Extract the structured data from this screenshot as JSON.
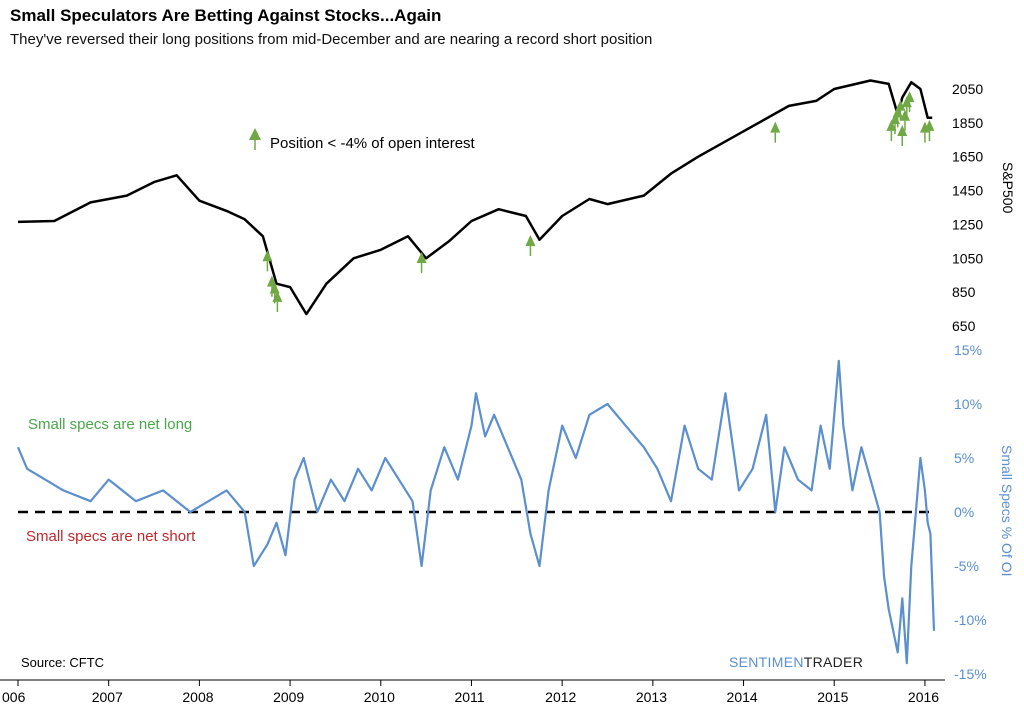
{
  "title": "Small Speculators Are Betting Against Stocks...Again",
  "subtitle": "They've reversed their long positions from mid-December and are nearing a record short position",
  "chart_data": [
    {
      "type": "line",
      "panel": "top",
      "ylabel": "S&P500",
      "y_ticks": [
        "2050",
        "1850",
        "1650",
        "1450",
        "1250",
        "1050",
        "850",
        "650"
      ],
      "ylim": [
        650,
        2150
      ],
      "x_ticks": [
        "006",
        "2007",
        "2008",
        "2009",
        "2010",
        "2011",
        "2012",
        "2013",
        "2014",
        "2015",
        "2016"
      ],
      "legend": "Position < -4% of open interest",
      "colors": {
        "line": "#000000",
        "marker": "#70a845"
      },
      "series": [
        {
          "x": [
            2006.0,
            2006.4,
            2006.8,
            2007.2,
            2007.5,
            2007.75,
            2008.0,
            2008.3,
            2008.5,
            2008.7,
            2008.85,
            2009.0,
            2009.18,
            2009.4,
            2009.7,
            2010.0,
            2010.3,
            2010.5,
            2010.75,
            2011.0,
            2011.3,
            2011.6,
            2011.75,
            2012.0,
            2012.3,
            2012.5,
            2012.9,
            2013.2,
            2013.5,
            2014.0,
            2014.5,
            2014.8,
            2015.0,
            2015.4,
            2015.6,
            2015.7,
            2015.75,
            2015.85,
            2015.95,
            2016.03,
            2016.08
          ],
          "values": [
            1265,
            1270,
            1380,
            1420,
            1500,
            1540,
            1390,
            1330,
            1280,
            1180,
            900,
            880,
            720,
            900,
            1050,
            1100,
            1180,
            1050,
            1150,
            1270,
            1340,
            1300,
            1160,
            1300,
            1400,
            1370,
            1420,
            1550,
            1650,
            1800,
            1950,
            1980,
            2050,
            2100,
            2080,
            1900,
            2000,
            2090,
            2050,
            1880,
            1880
          ]
        }
      ],
      "markers": [
        {
          "x": 2008.75,
          "y": 1050
        },
        {
          "x": 2008.8,
          "y": 900
        },
        {
          "x": 2008.83,
          "y": 860
        },
        {
          "x": 2008.86,
          "y": 810
        },
        {
          "x": 2010.45,
          "y": 1040
        },
        {
          "x": 2011.65,
          "y": 1140
        },
        {
          "x": 2014.35,
          "y": 1810
        },
        {
          "x": 2015.63,
          "y": 1820
        },
        {
          "x": 2015.67,
          "y": 1860
        },
        {
          "x": 2015.7,
          "y": 1900
        },
        {
          "x": 2015.73,
          "y": 1940
        },
        {
          "x": 2015.75,
          "y": 1790
        },
        {
          "x": 2015.78,
          "y": 1880
        },
        {
          "x": 2015.8,
          "y": 1960
        },
        {
          "x": 2015.83,
          "y": 1990
        },
        {
          "x": 2016.0,
          "y": 1810
        },
        {
          "x": 2016.05,
          "y": 1820
        }
      ]
    },
    {
      "type": "line",
      "panel": "bottom",
      "ylabel": "Small Specs % Of OI",
      "y_ticks": [
        "15%",
        "10%",
        "5%",
        "0%",
        "-5%",
        "-10%",
        "-15%"
      ],
      "ylim": [
        -15,
        15
      ],
      "colors": {
        "line": "#5b8fcf",
        "zero_line": "#000000",
        "long_label": "#4aa84a",
        "short_label": "#c0282d"
      },
      "annotations": {
        "long": "Small specs are net long",
        "short": "Small specs are net short"
      },
      "series": [
        {
          "x": [
            2006.0,
            2006.1,
            2006.3,
            2006.5,
            2006.8,
            2007.0,
            2007.3,
            2007.6,
            2007.9,
            2008.1,
            2008.3,
            2008.5,
            2008.6,
            2008.75,
            2008.85,
            2008.95,
            2009.05,
            2009.15,
            2009.3,
            2009.45,
            2009.6,
            2009.75,
            2009.9,
            2010.05,
            2010.2,
            2010.35,
            2010.45,
            2010.55,
            2010.7,
            2010.85,
            2011.0,
            2011.05,
            2011.15,
            2011.25,
            2011.4,
            2011.55,
            2011.65,
            2011.75,
            2011.85,
            2012.0,
            2012.15,
            2012.3,
            2012.5,
            2012.7,
            2012.9,
            2013.05,
            2013.2,
            2013.35,
            2013.5,
            2013.65,
            2013.8,
            2013.95,
            2014.1,
            2014.25,
            2014.35,
            2014.45,
            2014.6,
            2014.75,
            2014.85,
            2014.95,
            2015.05,
            2015.1,
            2015.2,
            2015.3,
            2015.4,
            2015.5,
            2015.55,
            2015.6,
            2015.7,
            2015.75,
            2015.8,
            2015.85,
            2015.9,
            2015.95,
            2016.0,
            2016.03,
            2016.06,
            2016.1
          ],
          "values": [
            6,
            4,
            3,
            2,
            1,
            3,
            1,
            2,
            0,
            1,
            2,
            0,
            -5,
            -3,
            -1,
            -4,
            3,
            5,
            0,
            3,
            1,
            4,
            2,
            5,
            3,
            1,
            -5,
            2,
            6,
            3,
            8,
            11,
            7,
            9,
            6,
            3,
            -2,
            -5,
            2,
            8,
            5,
            9,
            10,
            8,
            6,
            4,
            1,
            8,
            4,
            3,
            11,
            2,
            4,
            9,
            0,
            6,
            3,
            2,
            8,
            4,
            14,
            8,
            2,
            6,
            3,
            0,
            -6,
            -9,
            -13,
            -8,
            -14,
            -5,
            0,
            5,
            2,
            -1,
            -2,
            -11
          ]
        }
      ]
    }
  ],
  "source": "Source: CFTC",
  "brand": {
    "part1": "SENTIMEN",
    "part2": "TRADER"
  }
}
